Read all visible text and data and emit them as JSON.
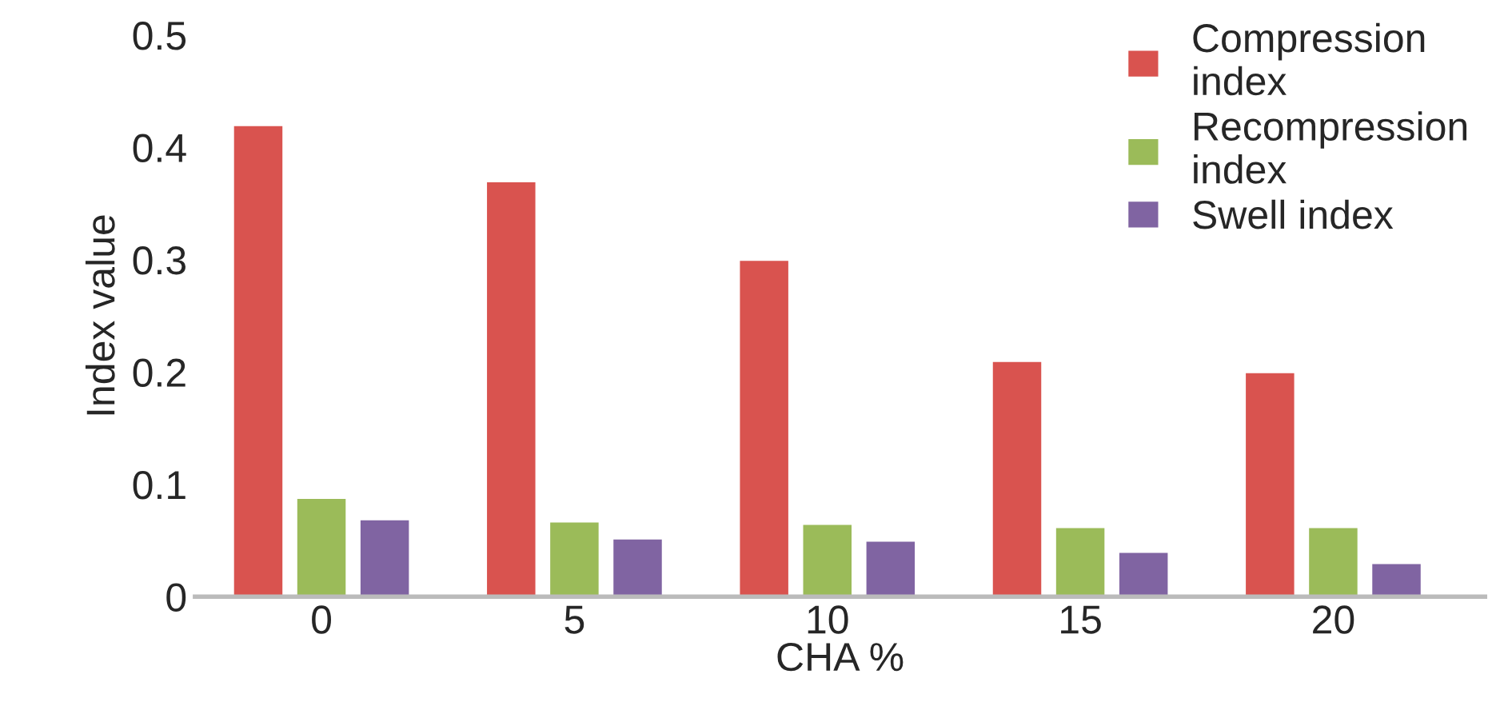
{
  "chart_data": {
    "type": "bar",
    "xlabel": "CHA %",
    "ylabel": "Index value",
    "categories": [
      "0",
      "5",
      "10",
      "15",
      "20"
    ],
    "series": [
      {
        "name": "Compression index",
        "color": "#d9534f",
        "values": [
          0.42,
          0.37,
          0.3,
          0.21,
          0.2
        ]
      },
      {
        "name": "Recompression index",
        "color": "#9bbb59",
        "values": [
          0.088,
          0.067,
          0.065,
          0.062,
          0.062
        ]
      },
      {
        "name": "Swell index",
        "color": "#8064a2",
        "values": [
          0.069,
          0.052,
          0.05,
          0.04,
          0.03
        ]
      }
    ],
    "ylim": [
      0,
      0.5
    ],
    "yticks": [
      0,
      0.1,
      0.2,
      0.3,
      0.4,
      0.5
    ],
    "grid": false,
    "legend": "top right"
  }
}
